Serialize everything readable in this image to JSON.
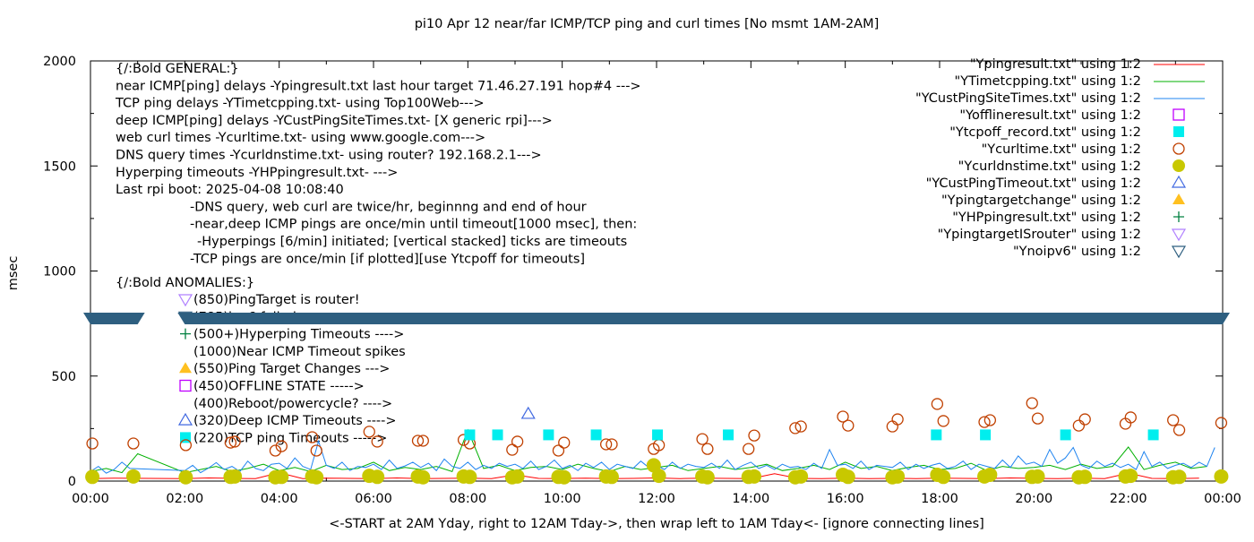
{
  "chart_data": {
    "type": "line",
    "title": "pi10 Apr 12  near/far ICMP/TCP ping and curl times [No msmt 1AM-2AM]",
    "xlabel": "<-START at 2AM Yday, right to 12AM Tday->, then wrap left to 1AM Tday<- [ignore connecting lines]",
    "ylabel": "msec",
    "xlim_hours": [
      0,
      24
    ],
    "ylim": [
      0,
      2000
    ],
    "x_tick_labels": [
      "00:00",
      "02:00",
      "04:00",
      "06:00",
      "08:00",
      "10:00",
      "12:00",
      "14:00",
      "16:00",
      "18:00",
      "20:00",
      "22:00",
      "00:00"
    ],
    "y_tick_labels": [
      "0",
      "500",
      "1000",
      "1500",
      "2000"
    ],
    "y_ticks": [
      0,
      500,
      1000,
      1500,
      2000
    ],
    "grid": false,
    "legend_placement": "top-right",
    "notes_general": [
      "{/:Bold GENERAL:}",
      "near ICMP[ping] delays -Ypingresult.txt last hour target 71.46.27.191 hop#4 --->",
      "TCP ping delays -YTimetcpping.txt- using Top100Web--->",
      "deep ICMP[ping] delays -YCustPingSiteTimes.txt- [X generic rpi]--->",
      "web curl times -Ycurltime.txt- using www.google.com--->",
      "DNS query times -Ycurldnstime.txt- using router? 192.168.2.1--->",
      "Hyperping timeouts -YHPpingresult.txt- --->",
      "Last rpi boot: 2025-04-08 10:08:40",
      "-DNS query, web curl are twice/hr, beginnng and end of hour",
      "-near,deep ICMP pings are once/min until timeout[1000 msec], then:",
      "  -Hyperpings [6/min] initiated; [vertical stacked] ticks are timeouts",
      "-TCP pings are once/min [if plotted][use Ytcpoff for timeouts]",
      "{/:Bold ANOMALIES:}"
    ],
    "notes_anomalies": [
      {
        "text": "(850)PingTarget is router!",
        "marker": "lavender-down-triangle"
      },
      {
        "text": "(785)ipv6 failed",
        "marker": "darkblue-down-triangle"
      },
      {
        "text": "(500+)Hyperping Timeouts ---->",
        "marker": "plus"
      },
      {
        "text": "(1000)Near ICMP Timeout spikes",
        "marker": ""
      },
      {
        "text": "(550)Ping Target Changes --->",
        "marker": "orange-triangle"
      },
      {
        "text": "(450)OFFLINE STATE ----->",
        "marker": "purple-square"
      },
      {
        "text": "(400)Reboot/powercycle? ---->",
        "marker": ""
      },
      {
        "text": "(320)Deep ICMP Timeouts ---->",
        "marker": "blue-triangle"
      },
      {
        "text": "(220)TCP ping Timeouts ----->",
        "marker": "cyan-square"
      }
    ],
    "legend": [
      {
        "label": "\"Ypingresult.txt\" using 1:2",
        "style": "line",
        "color": "#ff0000"
      },
      {
        "label": "\"YTimetcpping.txt\" using 1:2",
        "style": "line",
        "color": "#00b000"
      },
      {
        "label": "\"YCustPingSiteTimes.txt\" using 1:2",
        "style": "line",
        "color": "#1f84f0"
      },
      {
        "label": "\"Yofflineresult.txt\" using 1:2",
        "style": "open-square",
        "color": "#c000ff"
      },
      {
        "label": "\"Ytcpoff_record.txt\" using 1:2",
        "style": "filled-square",
        "color": "#00eeee"
      },
      {
        "label": "\"Ycurltime.txt\" using 1:2",
        "style": "open-circle",
        "color": "#c04000"
      },
      {
        "label": "\"Ycurldnstime.txt\" using 1:2",
        "style": "filled-circle",
        "color": "#c8c800"
      },
      {
        "label": "\"YCustPingTimeout.txt\" using 1:2",
        "style": "open-triangle",
        "color": "#4169e1"
      },
      {
        "label": "\"Ypingtargetchange\" using 1:2",
        "style": "filled-triangle",
        "color": "#ffc020"
      },
      {
        "label": "\"YHPpingresult.txt\" using 1:2",
        "style": "plus",
        "color": "#008040"
      },
      {
        "label": "\"YpingtargetISrouter\" using 1:2",
        "style": "open-down-triangle",
        "color": "#b080ff"
      },
      {
        "label": "\"Ynoipv6\" using 1:2",
        "style": "open-down-triangle",
        "color": "#2e5f80"
      }
    ],
    "series": {
      "ypingresult_10min": {
        "step_minutes": 30,
        "values": [
          12,
          14,
          null,
          null,
          12,
          15,
          13,
          12,
          40,
          12,
          14,
          13,
          12,
          15,
          12,
          13,
          14,
          12,
          30,
          13,
          12,
          14,
          12,
          13,
          15,
          12,
          14,
          13,
          12,
          35,
          13,
          12,
          14,
          12,
          13,
          12,
          14,
          13,
          12,
          15,
          13,
          12,
          14,
          12,
          38,
          13,
          12,
          14
        ]
      },
      "ytimetcpping": {
        "step_minutes": 20,
        "values": [
          45,
          60,
          40,
          130,
          null,
          null,
          40,
          55,
          70,
          45,
          60,
          80,
          50,
          65,
          45,
          75,
          55,
          60,
          90,
          50,
          65,
          55,
          70,
          45,
          243,
          60,
          75,
          50,
          65,
          70,
          55,
          80,
          60,
          45,
          70,
          55,
          65,
          75,
          50,
          60,
          70,
          55,
          65,
          80,
          50,
          60,
          75,
          55,
          90,
          60,
          70,
          50,
          65,
          75,
          55,
          60,
          85,
          50,
          70,
          60,
          65,
          75,
          55,
          80,
          60,
          70,
          162,
          55,
          75,
          90,
          60,
          70
        ]
      },
      "ycustpingsitetimes": {
        "step_minutes": 10,
        "values": [
          45,
          70,
          38,
          55,
          90,
          60,
          null,
          null,
          null,
          null,
          null,
          null,
          50,
          75,
          40,
          62,
          88,
          55,
          70,
          45,
          95,
          60,
          50,
          80,
          85,
          60,
          110,
          70,
          55,
          190,
          75,
          60,
          90,
          50,
          70,
          65,
          80,
          55,
          100,
          60,
          72,
          90,
          65,
          85,
          50,
          105,
          70,
          60,
          90,
          55,
          75,
          60,
          85,
          70,
          80,
          60,
          95,
          55,
          70,
          100,
          60,
          75,
          50,
          85,
          65,
          90,
          55,
          80,
          70,
          60,
          95,
          65,
          75,
          55,
          90,
          60,
          80,
          70,
          65,
          85,
          60,
          100,
          55,
          75,
          90,
          60,
          75,
          55,
          80,
          65,
          70,
          55,
          85,
          60,
          150,
          75,
          80,
          60,
          95,
          55,
          75,
          70,
          65,
          90,
          55,
          80,
          60,
          75,
          85,
          60,
          70,
          95,
          55,
          80,
          70,
          60,
          100,
          65,
          120,
          80,
          90,
          70,
          150,
          85,
          110,
          160,
          75,
          60,
          95,
          70,
          85,
          65,
          80,
          55,
          140,
          70,
          90,
          60,
          75,
          85,
          65,
          90,
          70,
          160
        ]
      },
      "ycurltime": [
        [
          0.04,
          179
        ],
        [
          0.91,
          179
        ],
        [
          2.02,
          171
        ],
        [
          2.97,
          183
        ],
        [
          3.06,
          188
        ],
        [
          3.92,
          145
        ],
        [
          4.05,
          166
        ],
        [
          4.7,
          209
        ],
        [
          4.79,
          145
        ],
        [
          5.91,
          235
        ],
        [
          6.08,
          188
        ],
        [
          6.94,
          192
        ],
        [
          7.05,
          192
        ],
        [
          7.91,
          196
        ],
        [
          8.04,
          179
        ],
        [
          8.94,
          149
        ],
        [
          9.05,
          188
        ],
        [
          9.92,
          145
        ],
        [
          10.04,
          183
        ],
        [
          10.93,
          175
        ],
        [
          11.05,
          175
        ],
        [
          11.94,
          153
        ],
        [
          12.05,
          171
        ],
        [
          12.97,
          200
        ],
        [
          13.08,
          153
        ],
        [
          13.95,
          153
        ],
        [
          14.07,
          217
        ],
        [
          14.94,
          252
        ],
        [
          15.06,
          260
        ],
        [
          15.95,
          307
        ],
        [
          16.06,
          264
        ],
        [
          17.0,
          260
        ],
        [
          17.11,
          294
        ],
        [
          17.95,
          367
        ],
        [
          18.08,
          286
        ],
        [
          18.95,
          281
        ],
        [
          19.07,
          290
        ],
        [
          19.96,
          371
        ],
        [
          20.08,
          298
        ],
        [
          20.95,
          264
        ],
        [
          21.08,
          294
        ],
        [
          21.94,
          273
        ],
        [
          22.05,
          303
        ],
        [
          22.95,
          290
        ],
        [
          23.08,
          243
        ],
        [
          23.97,
          277
        ]
      ],
      "ycurldnstime": [
        [
          0.04,
          20
        ],
        [
          0.91,
          22
        ],
        [
          2.02,
          18
        ],
        [
          2.97,
          20
        ],
        [
          3.06,
          22
        ],
        [
          3.92,
          18
        ],
        [
          4.05,
          20
        ],
        [
          4.7,
          22
        ],
        [
          4.79,
          18
        ],
        [
          5.91,
          25
        ],
        [
          6.08,
          20
        ],
        [
          6.94,
          22
        ],
        [
          7.05,
          18
        ],
        [
          7.91,
          22
        ],
        [
          8.04,
          20
        ],
        [
          8.94,
          18
        ],
        [
          9.05,
          22
        ],
        [
          9.92,
          20
        ],
        [
          10.04,
          18
        ],
        [
          10.93,
          22
        ],
        [
          11.05,
          20
        ],
        [
          11.94,
          75
        ],
        [
          12.05,
          25
        ],
        [
          12.97,
          22
        ],
        [
          13.08,
          18
        ],
        [
          13.95,
          20
        ],
        [
          14.07,
          22
        ],
        [
          14.94,
          18
        ],
        [
          15.06,
          22
        ],
        [
          15.95,
          30
        ],
        [
          16.06,
          20
        ],
        [
          17.0,
          18
        ],
        [
          17.11,
          22
        ],
        [
          17.95,
          30
        ],
        [
          18.08,
          20
        ],
        [
          18.95,
          22
        ],
        [
          19.07,
          30
        ],
        [
          19.96,
          20
        ],
        [
          20.08,
          22
        ],
        [
          20.95,
          18
        ],
        [
          21.08,
          20
        ],
        [
          21.94,
          22
        ],
        [
          22.05,
          25
        ],
        [
          22.95,
          18
        ],
        [
          23.08,
          20
        ],
        [
          23.97,
          22
        ]
      ],
      "ytcpoff_record": [
        [
          8.04,
          220
        ],
        [
          8.63,
          220
        ],
        [
          9.71,
          220
        ],
        [
          10.72,
          220
        ],
        [
          12.02,
          220
        ],
        [
          13.52,
          220
        ],
        [
          17.93,
          220
        ],
        [
          18.97,
          220
        ],
        [
          20.67,
          220
        ],
        [
          22.53,
          220
        ]
      ],
      "ycustpingtimeout": [
        [
          9.28,
          320
        ]
      ],
      "ynoipv6_runs": [
        {
          "from_hour": 0,
          "to_hour": 1.0,
          "value": 776
        },
        {
          "from_hour": 2.0,
          "to_hour": 24,
          "value": 776
        }
      ]
    }
  }
}
